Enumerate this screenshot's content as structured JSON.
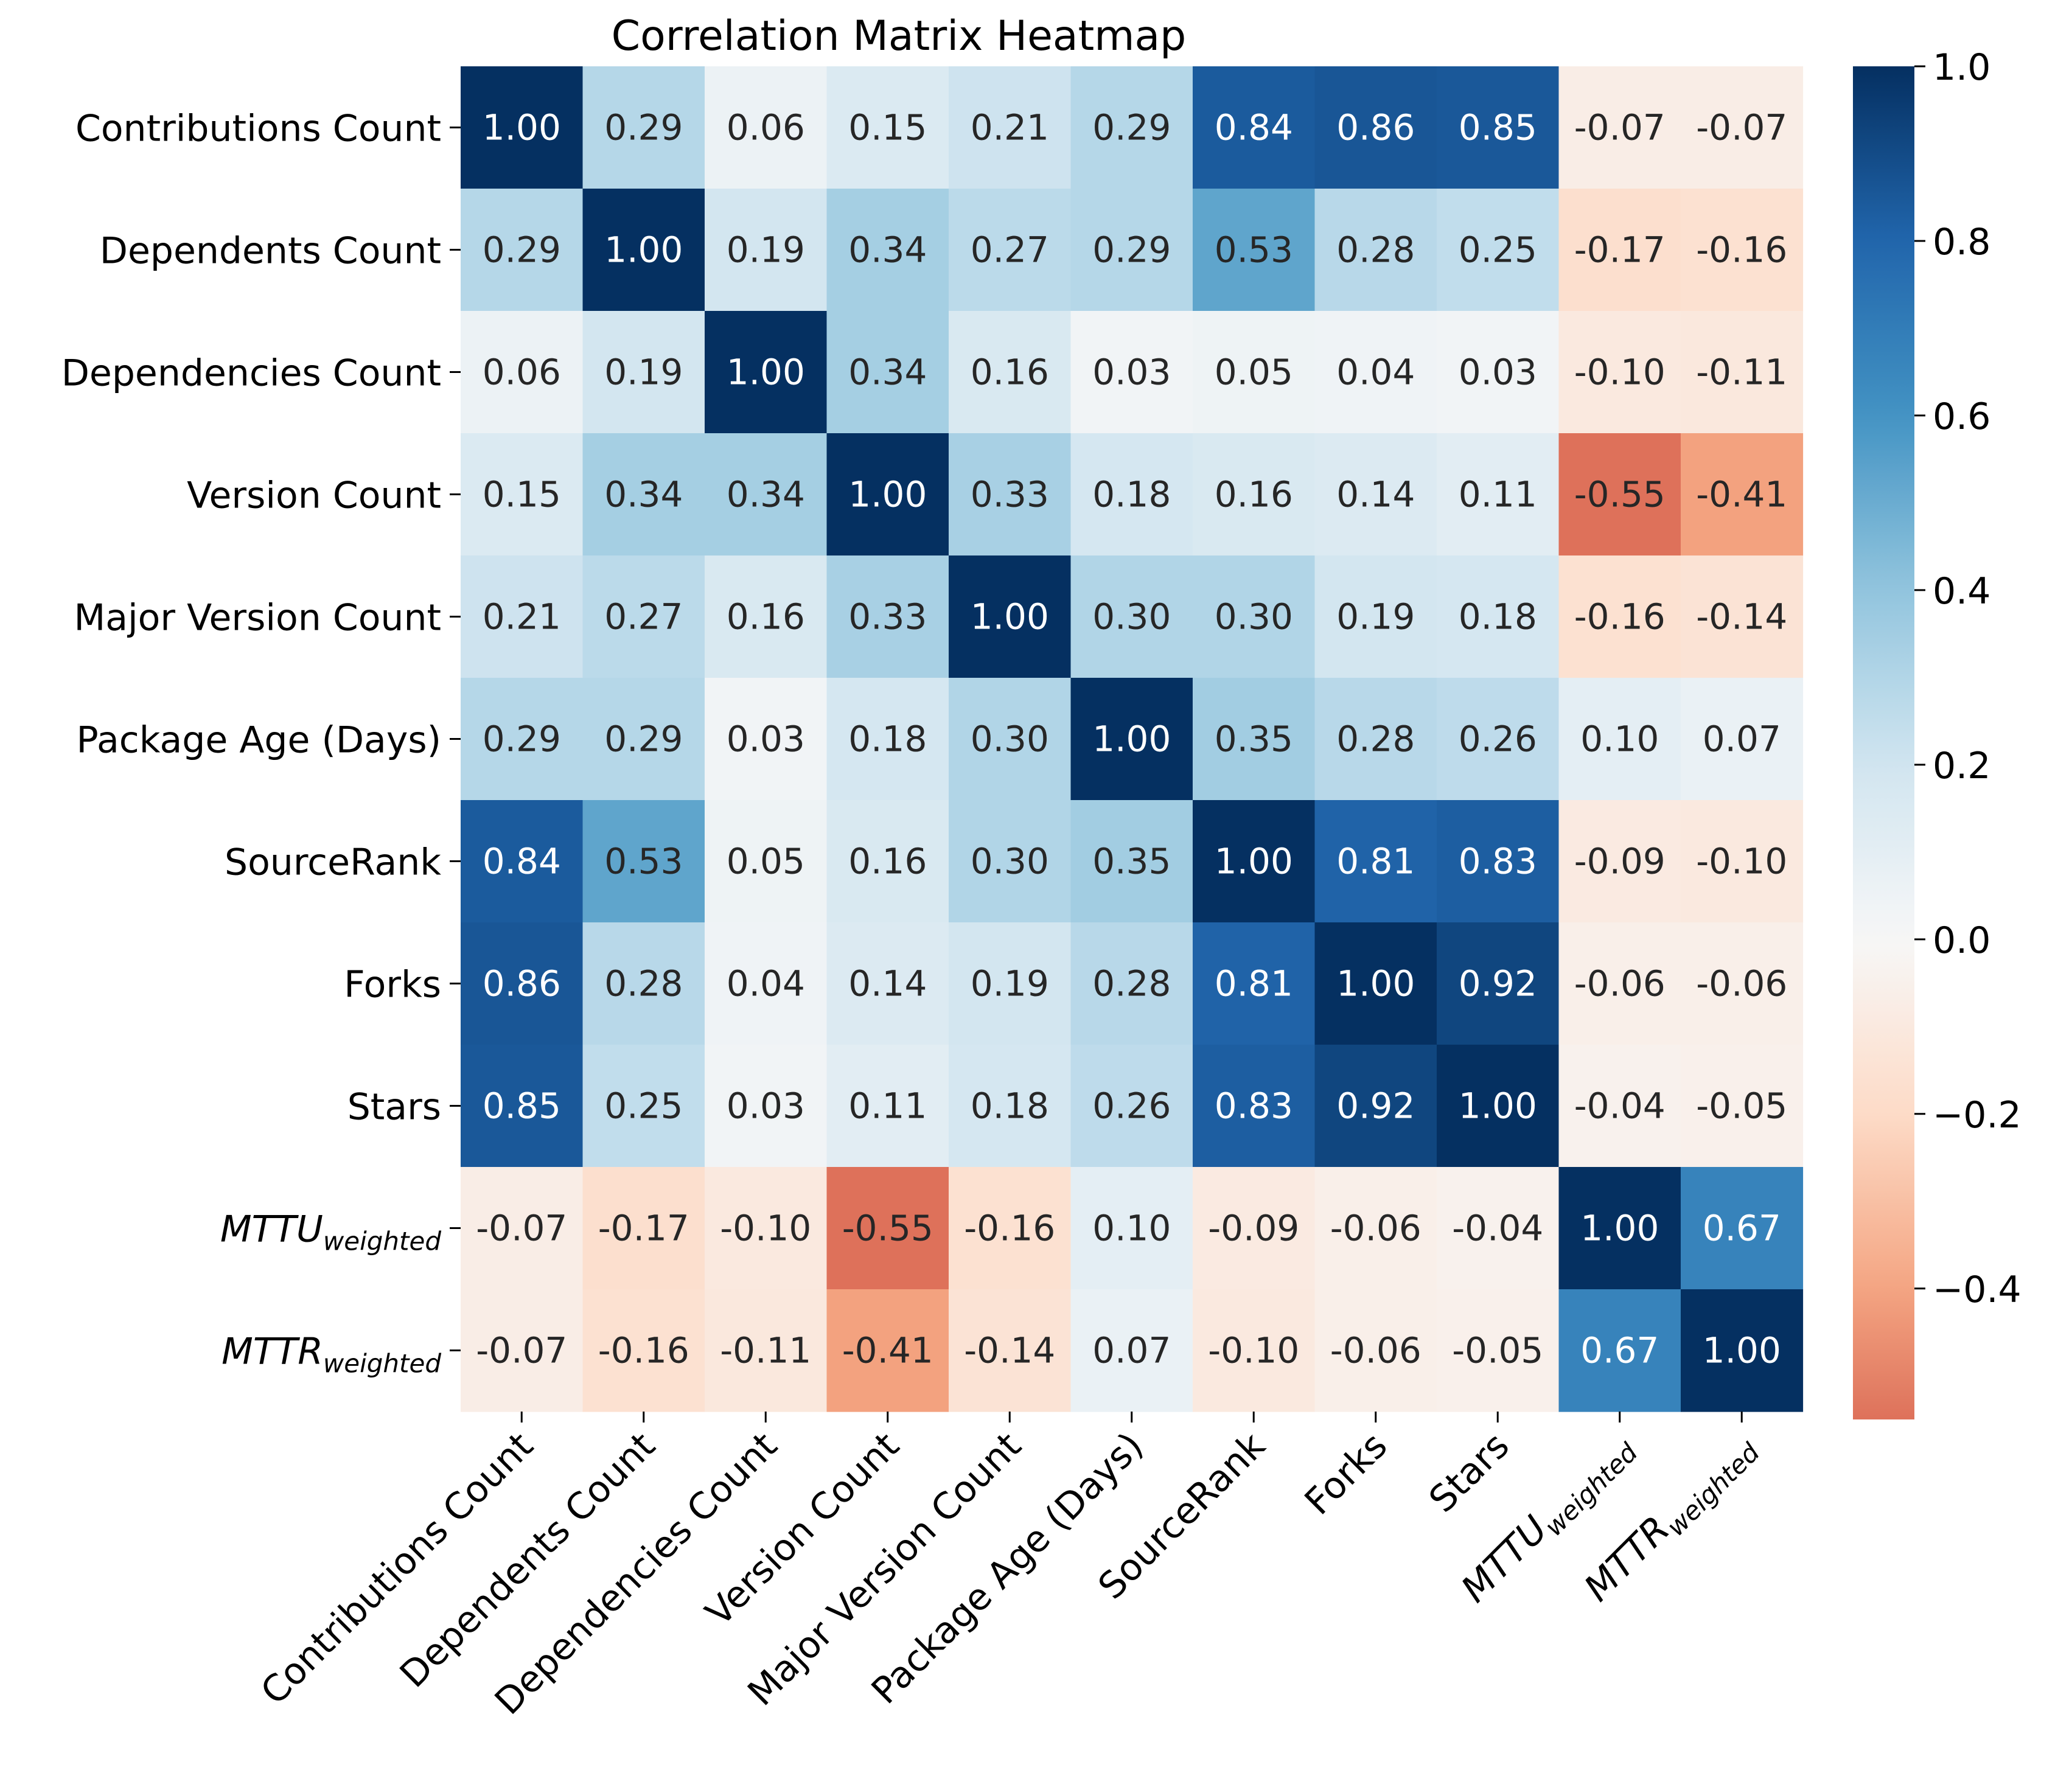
{
  "chart_data": {
    "type": "heatmap",
    "title": "Correlation Matrix Heatmap",
    "labels": [
      {
        "base": "Contributions Count",
        "sub": ""
      },
      {
        "base": "Dependents Count",
        "sub": ""
      },
      {
        "base": "Dependencies Count",
        "sub": ""
      },
      {
        "base": "Version Count",
        "sub": ""
      },
      {
        "base": "Major Version Count",
        "sub": ""
      },
      {
        "base": "Package Age (Days)",
        "sub": ""
      },
      {
        "base": "SourceRank",
        "sub": ""
      },
      {
        "base": "Forks",
        "sub": ""
      },
      {
        "base": "Stars",
        "sub": ""
      },
      {
        "base": "MTTU",
        "sub": "weighted"
      },
      {
        "base": "MTTR",
        "sub": "weighted"
      }
    ],
    "matrix": [
      [
        1.0,
        0.29,
        0.06,
        0.15,
        0.21,
        0.29,
        0.84,
        0.86,
        0.85,
        -0.07,
        -0.07
      ],
      [
        0.29,
        1.0,
        0.19,
        0.34,
        0.27,
        0.29,
        0.53,
        0.28,
        0.25,
        -0.17,
        -0.16
      ],
      [
        0.06,
        0.19,
        1.0,
        0.34,
        0.16,
        0.03,
        0.05,
        0.04,
        0.03,
        -0.1,
        -0.11
      ],
      [
        0.15,
        0.34,
        0.34,
        1.0,
        0.33,
        0.18,
        0.16,
        0.14,
        0.11,
        -0.55,
        -0.41
      ],
      [
        0.21,
        0.27,
        0.16,
        0.33,
        1.0,
        0.3,
        0.3,
        0.19,
        0.18,
        -0.16,
        -0.14
      ],
      [
        0.29,
        0.29,
        0.03,
        0.18,
        0.3,
        1.0,
        0.35,
        0.28,
        0.26,
        0.1,
        0.07
      ],
      [
        0.84,
        0.53,
        0.05,
        0.16,
        0.3,
        0.35,
        1.0,
        0.81,
        0.83,
        -0.09,
        -0.1
      ],
      [
        0.86,
        0.28,
        0.04,
        0.14,
        0.19,
        0.28,
        0.81,
        1.0,
        0.92,
        -0.06,
        -0.06
      ],
      [
        0.85,
        0.25,
        0.03,
        0.11,
        0.18,
        0.26,
        0.83,
        0.92,
        1.0,
        -0.04,
        -0.05
      ],
      [
        -0.07,
        -0.17,
        -0.1,
        -0.55,
        -0.16,
        0.1,
        -0.09,
        -0.06,
        -0.04,
        1.0,
        0.67
      ],
      [
        -0.07,
        -0.16,
        -0.11,
        -0.41,
        -0.14,
        0.07,
        -0.1,
        -0.06,
        -0.05,
        0.67,
        1.0
      ]
    ],
    "value_format": "0.00",
    "colormap": "RdBu",
    "colorbar": {
      "vmin": -0.55,
      "vmax": 1.0,
      "center": 0.0,
      "ticks": [
        1.0,
        0.8,
        0.6,
        0.4,
        0.2,
        0.0,
        -0.2,
        -0.4
      ],
      "tick_labels": [
        "1.0",
        "0.8",
        "0.6",
        "0.4",
        "0.2",
        "0.0",
        "−0.2",
        "−0.4"
      ]
    },
    "colors": {
      "neg_end": "#67001f",
      "neg_mid": "#d6604d",
      "neg_light": "#f4a582",
      "neg_pale": "#fddbc7",
      "center": "#f7f7f7",
      "pos_pale": "#d1e5f0",
      "pos_light": "#92c5de",
      "pos_mid": "#4393c3",
      "pos_dark": "#2166ac",
      "pos_end": "#053061",
      "text_dark": "#262626",
      "text_light": "#ffffff"
    }
  }
}
